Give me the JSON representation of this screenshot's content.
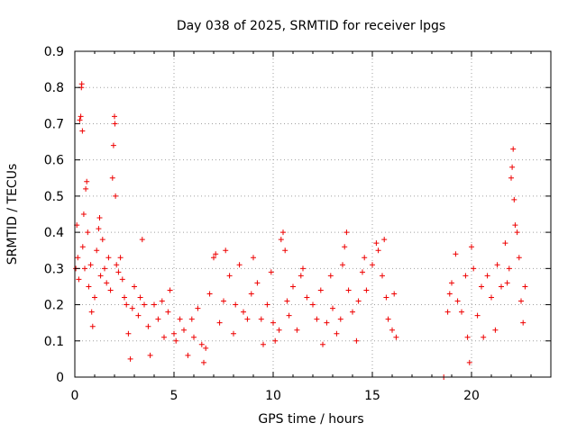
{
  "chart_data": {
    "type": "scatter",
    "title": "Day 038 of 2025, SRMTID for receiver lpgs",
    "xlabel": "GPS time / hours",
    "ylabel": "SRMTID / TECUs",
    "xlim": [
      0,
      24
    ],
    "ylim": [
      0,
      0.9
    ],
    "xticks": [
      "0",
      "5",
      "10",
      "15",
      "20"
    ],
    "yticks": [
      "0",
      "0.1",
      "0.2",
      "0.3",
      "0.4",
      "0.5",
      "0.6",
      "0.7",
      "0.8",
      "0.9"
    ],
    "grid": true,
    "marker": "plus",
    "color": "#ee0000",
    "series": [
      {
        "name": "SRMTID",
        "points": [
          [
            0.05,
            0.3
          ],
          [
            0.1,
            0.42
          ],
          [
            0.15,
            0.33
          ],
          [
            0.2,
            0.27
          ],
          [
            0.25,
            0.71
          ],
          [
            0.3,
            0.72
          ],
          [
            0.33,
            0.8
          ],
          [
            0.35,
            0.81
          ],
          [
            0.38,
            0.68
          ],
          [
            0.4,
            0.36
          ],
          [
            0.45,
            0.45
          ],
          [
            0.5,
            0.3
          ],
          [
            0.55,
            0.52
          ],
          [
            0.6,
            0.54
          ],
          [
            0.65,
            0.4
          ],
          [
            0.7,
            0.25
          ],
          [
            0.8,
            0.31
          ],
          [
            0.85,
            0.18
          ],
          [
            0.9,
            0.14
          ],
          [
            1.0,
            0.22
          ],
          [
            1.1,
            0.35
          ],
          [
            1.2,
            0.41
          ],
          [
            1.25,
            0.44
          ],
          [
            1.3,
            0.28
          ],
          [
            1.4,
            0.38
          ],
          [
            1.5,
            0.3
          ],
          [
            1.6,
            0.26
          ],
          [
            1.7,
            0.33
          ],
          [
            1.8,
            0.24
          ],
          [
            1.9,
            0.55
          ],
          [
            1.95,
            0.64
          ],
          [
            2.0,
            0.72
          ],
          [
            2.02,
            0.7
          ],
          [
            2.05,
            0.5
          ],
          [
            2.1,
            0.31
          ],
          [
            2.2,
            0.29
          ],
          [
            2.3,
            0.33
          ],
          [
            2.4,
            0.27
          ],
          [
            2.5,
            0.22
          ],
          [
            2.6,
            0.2
          ],
          [
            2.7,
            0.12
          ],
          [
            2.8,
            0.05
          ],
          [
            2.9,
            0.19
          ],
          [
            3.0,
            0.25
          ],
          [
            3.2,
            0.17
          ],
          [
            3.3,
            0.22
          ],
          [
            3.4,
            0.38
          ],
          [
            3.5,
            0.2
          ],
          [
            3.7,
            0.14
          ],
          [
            3.8,
            0.06
          ],
          [
            4.0,
            0.2
          ],
          [
            4.2,
            0.16
          ],
          [
            4.4,
            0.21
          ],
          [
            4.5,
            0.11
          ],
          [
            4.7,
            0.18
          ],
          [
            4.8,
            0.24
          ],
          [
            5.0,
            0.12
          ],
          [
            5.1,
            0.1
          ],
          [
            5.3,
            0.16
          ],
          [
            5.5,
            0.13
          ],
          [
            5.7,
            0.06
          ],
          [
            5.9,
            0.16
          ],
          [
            6.0,
            0.11
          ],
          [
            6.2,
            0.19
          ],
          [
            6.4,
            0.09
          ],
          [
            6.5,
            0.04
          ],
          [
            6.6,
            0.08
          ],
          [
            6.8,
            0.23
          ],
          [
            7.0,
            0.33
          ],
          [
            7.1,
            0.34
          ],
          [
            7.3,
            0.15
          ],
          [
            7.5,
            0.21
          ],
          [
            7.6,
            0.35
          ],
          [
            7.8,
            0.28
          ],
          [
            8.0,
            0.12
          ],
          [
            8.1,
            0.2
          ],
          [
            8.3,
            0.31
          ],
          [
            8.5,
            0.18
          ],
          [
            8.7,
            0.16
          ],
          [
            8.9,
            0.23
          ],
          [
            9.0,
            0.33
          ],
          [
            9.2,
            0.26
          ],
          [
            9.4,
            0.16
          ],
          [
            9.5,
            0.09
          ],
          [
            9.7,
            0.2
          ],
          [
            9.9,
            0.29
          ],
          [
            10.0,
            0.15
          ],
          [
            10.1,
            0.1
          ],
          [
            10.3,
            0.13
          ],
          [
            10.4,
            0.38
          ],
          [
            10.5,
            0.4
          ],
          [
            10.6,
            0.35
          ],
          [
            10.7,
            0.21
          ],
          [
            10.8,
            0.17
          ],
          [
            11.0,
            0.25
          ],
          [
            11.2,
            0.13
          ],
          [
            11.4,
            0.28
          ],
          [
            11.5,
            0.3
          ],
          [
            11.7,
            0.22
          ],
          [
            12.0,
            0.2
          ],
          [
            12.2,
            0.16
          ],
          [
            12.4,
            0.24
          ],
          [
            12.5,
            0.09
          ],
          [
            12.7,
            0.15
          ],
          [
            12.9,
            0.28
          ],
          [
            13.0,
            0.19
          ],
          [
            13.2,
            0.12
          ],
          [
            13.4,
            0.16
          ],
          [
            13.5,
            0.31
          ],
          [
            13.6,
            0.36
          ],
          [
            13.7,
            0.4
          ],
          [
            13.8,
            0.24
          ],
          [
            14.0,
            0.18
          ],
          [
            14.2,
            0.1
          ],
          [
            14.3,
            0.21
          ],
          [
            14.5,
            0.29
          ],
          [
            14.6,
            0.33
          ],
          [
            14.7,
            0.24
          ],
          [
            15.0,
            0.31
          ],
          [
            15.2,
            0.37
          ],
          [
            15.3,
            0.35
          ],
          [
            15.5,
            0.28
          ],
          [
            15.6,
            0.38
          ],
          [
            15.7,
            0.22
          ],
          [
            15.8,
            0.16
          ],
          [
            16.0,
            0.13
          ],
          [
            16.1,
            0.23
          ],
          [
            16.2,
            0.11
          ],
          [
            18.6,
            0.0
          ],
          [
            18.8,
            0.18
          ],
          [
            18.9,
            0.23
          ],
          [
            19.0,
            0.26
          ],
          [
            19.2,
            0.34
          ],
          [
            19.3,
            0.21
          ],
          [
            19.5,
            0.18
          ],
          [
            19.7,
            0.28
          ],
          [
            19.8,
            0.11
          ],
          [
            19.9,
            0.04
          ],
          [
            20.0,
            0.36
          ],
          [
            20.1,
            0.3
          ],
          [
            20.3,
            0.17
          ],
          [
            20.5,
            0.25
          ],
          [
            20.6,
            0.11
          ],
          [
            20.8,
            0.28
          ],
          [
            21.0,
            0.22
          ],
          [
            21.2,
            0.13
          ],
          [
            21.3,
            0.31
          ],
          [
            21.5,
            0.25
          ],
          [
            21.7,
            0.37
          ],
          [
            21.8,
            0.26
          ],
          [
            21.9,
            0.3
          ],
          [
            22.0,
            0.55
          ],
          [
            22.05,
            0.58
          ],
          [
            22.1,
            0.63
          ],
          [
            22.15,
            0.49
          ],
          [
            22.2,
            0.42
          ],
          [
            22.3,
            0.4
          ],
          [
            22.4,
            0.33
          ],
          [
            22.5,
            0.21
          ],
          [
            22.6,
            0.15
          ],
          [
            22.7,
            0.25
          ]
        ]
      }
    ]
  }
}
